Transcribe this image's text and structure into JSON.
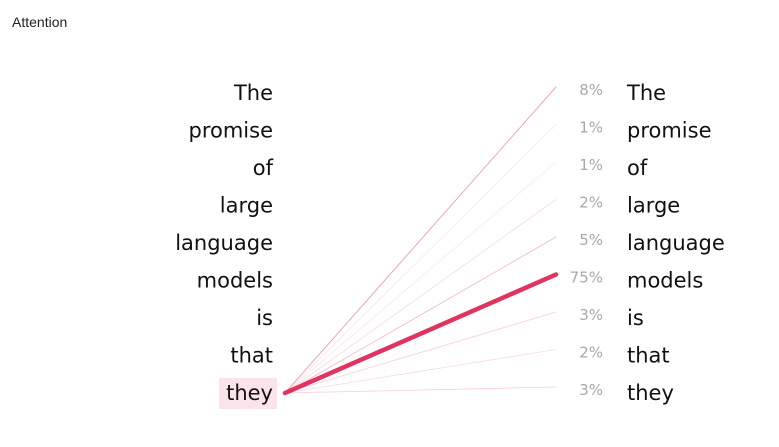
{
  "header": {
    "title": "Attention"
  },
  "attention": {
    "query_index": 8,
    "source_tokens": [
      "The",
      "promise",
      "of",
      "large",
      "language",
      "models",
      "is",
      "that",
      "they"
    ],
    "target_tokens": [
      "The",
      "promise",
      "of",
      "large",
      "language",
      "models",
      "is",
      "that",
      "they"
    ],
    "weights": [
      8,
      1,
      1,
      2,
      5,
      75,
      3,
      2,
      3
    ],
    "weight_labels": [
      "8%",
      "1%",
      "1%",
      "2%",
      "5%",
      "75%",
      "3%",
      "2%",
      "3%"
    ],
    "colors": {
      "line": "#e0345f",
      "highlight_bg": "#fbe3ea",
      "percent_text": "#a8a8a8",
      "token_text": "#111111"
    }
  }
}
